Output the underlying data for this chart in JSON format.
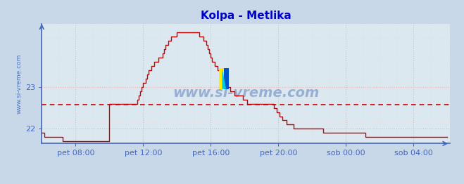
{
  "title": "Kolpa - Metlika",
  "title_color": "#0000cc",
  "title_fontsize": 11,
  "fig_bg_color": "#c8d8e8",
  "plot_bg_color": "#dce8f0",
  "grid_color": "#ffaaaa",
  "grid_color_minor": "#ffcccc",
  "axis_color": "#4466bb",
  "line_color": "#cc0000",
  "avg_line_color": "#cc0000",
  "avg_line_value": 22.57,
  "ylabel_text": "www.si-vreme.com",
  "ylabel_color": "#5577bb",
  "watermark": "www.si-vreme.com",
  "watermark_color": "#5577bb",
  "legend_color": "#cc0000",
  "ylim_min": 21.65,
  "ylim_max": 24.5,
  "yticks": [
    22,
    23
  ],
  "xtick_labels": [
    "pet 08:00",
    "pet 12:00",
    "pet 16:00",
    "pet 20:00",
    "sob 00:00",
    "sob 04:00"
  ],
  "xtick_positions": [
    120,
    360,
    600,
    840,
    1080,
    1320
  ],
  "xlim_min": 0,
  "xlim_max": 1450,
  "temperature_data": [
    21.9,
    21.9,
    21.8,
    21.8,
    21.8,
    21.8,
    21.8,
    21.8,
    21.8,
    21.8,
    21.8,
    21.8,
    21.8,
    21.8,
    21.8,
    21.7,
    21.7,
    21.7,
    21.7,
    21.7,
    21.7,
    21.7,
    21.7,
    21.7,
    21.7,
    21.7,
    21.7,
    21.7,
    21.7,
    21.7,
    21.7,
    21.7,
    21.7,
    21.7,
    21.7,
    21.7,
    21.7,
    21.7,
    21.7,
    21.7,
    21.7,
    21.7,
    21.7,
    21.7,
    21.7,
    21.7,
    21.7,
    21.7,
    22.6,
    22.6,
    22.6,
    22.6,
    22.6,
    22.6,
    22.6,
    22.6,
    22.6,
    22.6,
    22.6,
    22.6,
    22.6,
    22.6,
    22.6,
    22.6,
    22.6,
    22.6,
    22.6,
    22.6,
    22.7,
    22.8,
    22.9,
    23.0,
    23.1,
    23.1,
    23.2,
    23.3,
    23.4,
    23.4,
    23.5,
    23.5,
    23.6,
    23.6,
    23.6,
    23.7,
    23.7,
    23.7,
    23.8,
    23.9,
    24.0,
    24.0,
    24.1,
    24.1,
    24.2,
    24.2,
    24.2,
    24.2,
    24.3,
    24.3,
    24.3,
    24.3,
    24.3,
    24.3,
    24.3,
    24.3,
    24.3,
    24.3,
    24.3,
    24.3,
    24.3,
    24.3,
    24.3,
    24.3,
    24.2,
    24.2,
    24.2,
    24.1,
    24.1,
    24.0,
    23.9,
    23.8,
    23.7,
    23.6,
    23.6,
    23.5,
    23.5,
    23.4,
    23.4,
    23.3,
    23.2,
    23.2,
    23.1,
    23.1,
    23.0,
    23.0,
    22.9,
    22.9,
    22.9,
    22.8,
    22.8,
    22.8,
    22.8,
    22.8,
    22.8,
    22.7,
    22.7,
    22.7,
    22.6,
    22.6,
    22.6,
    22.6,
    22.6,
    22.6,
    22.6,
    22.6,
    22.6,
    22.6,
    22.6,
    22.6,
    22.6,
    22.6,
    22.6,
    22.6,
    22.6,
    22.6,
    22.6,
    22.5,
    22.5,
    22.4,
    22.4,
    22.3,
    22.3,
    22.2,
    22.2,
    22.2,
    22.1,
    22.1,
    22.1,
    22.1,
    22.1,
    22.0,
    22.0,
    22.0,
    22.0,
    22.0,
    22.0,
    22.0,
    22.0,
    22.0,
    22.0,
    22.0,
    22.0,
    22.0,
    22.0,
    22.0,
    22.0,
    22.0,
    22.0,
    22.0,
    22.0,
    22.0,
    21.9,
    21.9,
    21.9,
    21.9,
    21.9,
    21.9,
    21.9,
    21.9,
    21.9,
    21.9,
    21.9,
    21.9,
    21.9,
    21.9,
    21.9,
    21.9,
    21.9,
    21.9,
    21.9,
    21.9,
    21.9,
    21.9,
    21.9,
    21.9,
    21.9,
    21.9,
    21.9,
    21.9,
    21.9,
    21.9,
    21.8,
    21.8,
    21.8,
    21.8,
    21.8,
    21.8,
    21.8,
    21.8,
    21.8,
    21.8,
    21.8,
    21.8,
    21.8,
    21.8,
    21.8,
    21.8,
    21.8,
    21.8,
    21.8,
    21.8,
    21.8,
    21.8,
    21.8,
    21.8,
    21.8,
    21.8,
    21.8,
    21.8,
    21.8,
    21.8,
    21.8,
    21.8,
    21.8,
    21.8,
    21.8,
    21.8,
    21.8,
    21.8,
    21.8,
    21.8,
    21.8,
    21.8,
    21.8,
    21.8,
    21.8,
    21.8,
    21.8,
    21.8,
    21.8,
    21.8,
    21.8,
    21.8,
    21.8,
    21.8,
    21.8,
    21.8,
    21.8,
    21.8,
    21.8
  ]
}
